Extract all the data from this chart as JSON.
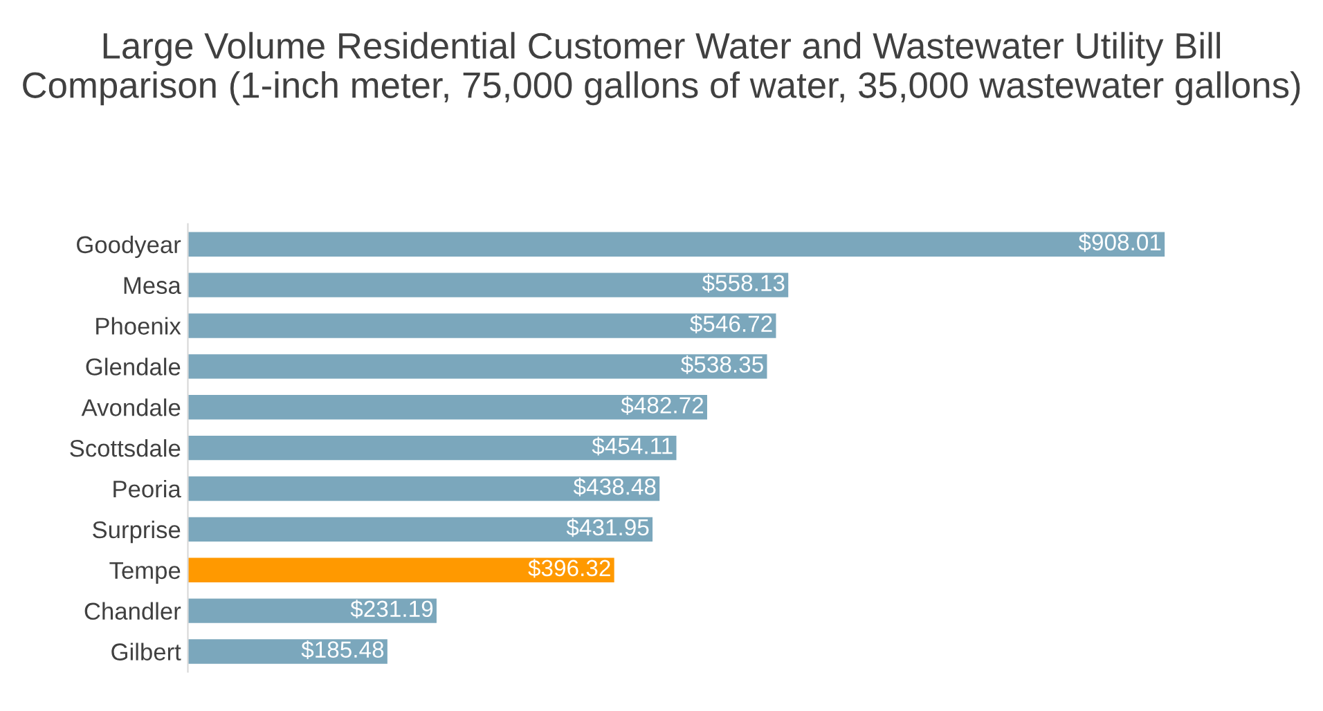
{
  "chart_data": {
    "type": "bar",
    "orientation": "horizontal",
    "title": "Large Volume Residential Customer Water and Wastewater Utility Bill Comparison (1-inch meter, 75,000 gallons of water, 35,000 wastewater gallons)",
    "categories": [
      "Goodyear",
      "Mesa",
      "Phoenix",
      "Glendale",
      "Avondale",
      "Scottsdale",
      "Peoria",
      "Surprise",
      "Tempe",
      "Chandler",
      "Gilbert"
    ],
    "values": [
      908.01,
      558.13,
      546.72,
      538.35,
      482.72,
      454.11,
      438.48,
      431.95,
      396.32,
      231.19,
      185.48
    ],
    "colors": [
      "#7ba7bc",
      "#7ba7bc",
      "#7ba7bc",
      "#7ba7bc",
      "#7ba7bc",
      "#7ba7bc",
      "#7ba7bc",
      "#7ba7bc",
      "#ff9900",
      "#7ba7bc",
      "#7ba7bc"
    ],
    "value_labels": [
      "$908.01",
      "$558.13",
      "$546.72",
      "$538.35",
      "$482.72",
      "$454.11",
      "$438.48",
      "$431.95",
      "$396.32",
      "$231.19",
      "$185.48"
    ],
    "tick_labels": "y",
    "grid": false,
    "legend": false
  }
}
